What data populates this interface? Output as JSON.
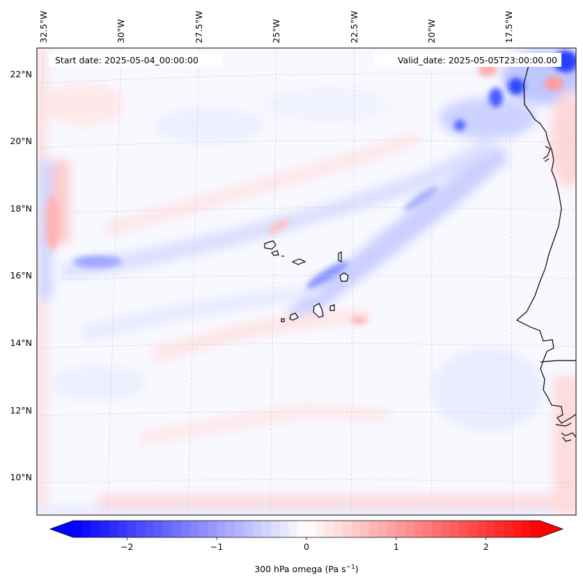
{
  "map": {
    "projection": "Lambert conformal",
    "start_date_label": "Start date: 2025-05-04_00:00:00",
    "valid_date_label": "Valid_date: 2025-05-05T23:00:00.00",
    "lon_labels": [
      "32.5°W",
      "30°W",
      "27.5°W",
      "25°W",
      "22.5°W",
      "20°W",
      "17.5°W"
    ],
    "lat_labels": [
      "22°N",
      "20°N",
      "18°N",
      "16°N",
      "14°N",
      "12°N",
      "10°N"
    ],
    "features": [
      "Cape Verde islands",
      "West African coastline"
    ]
  },
  "colorbar": {
    "label_main": "300 hPa omega (Pa s",
    "label_sup": "−1",
    "label_close": ")",
    "ticks": [
      "−2",
      "−1",
      "0",
      "1",
      "2"
    ],
    "range": [
      -2.6,
      2.6
    ],
    "cmap": "bwr",
    "low_color": "#0000ff",
    "mid_color": "#ffffff",
    "high_color": "#ff0000"
  }
}
